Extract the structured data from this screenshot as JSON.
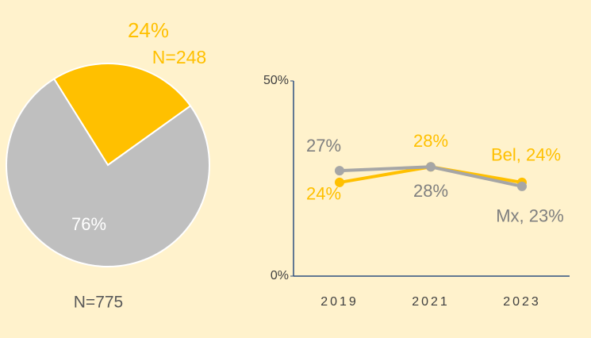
{
  "chart_data": [
    {
      "type": "pie",
      "values": [
        24,
        76
      ],
      "value_labels": [
        "24%",
        "76%"
      ],
      "colors": [
        "#FFC000",
        "#BFBFBF"
      ],
      "annotations": [
        "N=248",
        "N=775"
      ]
    },
    {
      "type": "line",
      "categories": [
        "2019",
        "2021",
        "2023"
      ],
      "series": [
        {
          "color": "#FFC000",
          "values": [
            24,
            28,
            24
          ],
          "value_labels": [
            "24%",
            "28%",
            "Bel, 24%"
          ]
        },
        {
          "color": "#A6A6A6",
          "values": [
            27,
            28,
            23
          ],
          "value_labels": [
            "27%",
            "28%",
            "Mx, 23%"
          ]
        }
      ],
      "ylim": [
        0,
        50
      ],
      "yticks": [
        {
          "value": 0,
          "label": "0%"
        },
        {
          "value": 50,
          "label": "50%"
        }
      ],
      "grid": false
    }
  ]
}
